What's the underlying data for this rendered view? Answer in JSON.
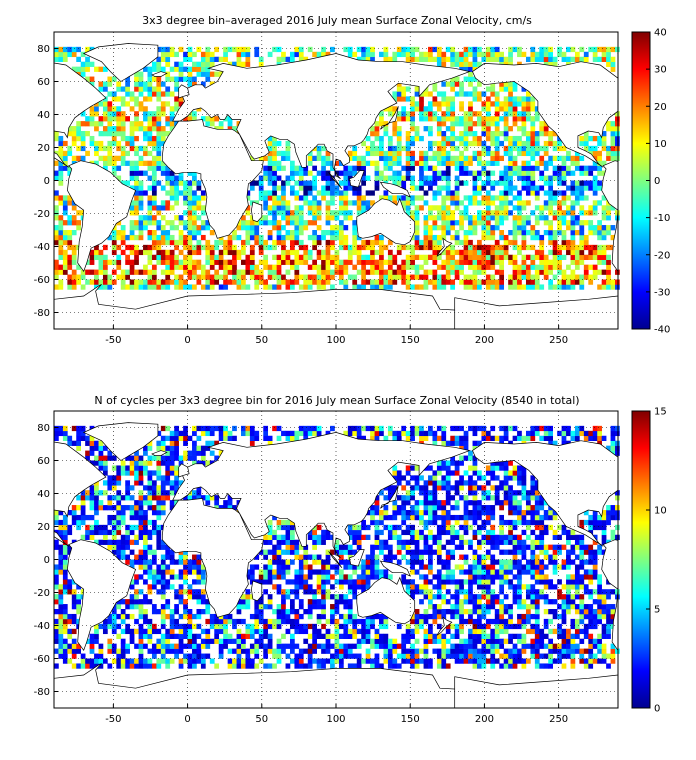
{
  "chart_data": [
    {
      "type": "heatmap",
      "title": "3x3 degree bin–averaged 2016 July mean Surface Zonal Velocity, cm/s",
      "xlabel": "",
      "ylabel": "",
      "xlim": [
        -90,
        290
      ],
      "ylim": [
        -90,
        90
      ],
      "xticks": [
        -50,
        0,
        50,
        100,
        150,
        200,
        250
      ],
      "yticks": [
        -80,
        -60,
        -40,
        -20,
        0,
        20,
        40,
        60,
        80
      ],
      "grid": true,
      "bin_size_deg": 3,
      "colorbar": {
        "min": -40,
        "max": 40,
        "ticks": [
          -40,
          -30,
          -20,
          -10,
          0,
          10,
          20,
          30,
          40
        ],
        "colormap": "jet"
      }
    },
    {
      "type": "heatmap",
      "title": "N of cycles per 3x3 degree bin for 2016 July mean Surface Zonal Velocity (8540 in total)",
      "xlabel": "",
      "ylabel": "",
      "xlim": [
        -90,
        290
      ],
      "ylim": [
        -90,
        90
      ],
      "xticks": [
        -50,
        0,
        50,
        100,
        150,
        200,
        250
      ],
      "yticks": [
        -80,
        -60,
        -40,
        -20,
        0,
        20,
        40,
        60,
        80
      ],
      "grid": true,
      "bin_size_deg": 3,
      "total_cycles": 8540,
      "colorbar": {
        "min": 0,
        "max": 15,
        "ticks": [
          0,
          5,
          10,
          15
        ],
        "colormap": "jet"
      }
    }
  ]
}
